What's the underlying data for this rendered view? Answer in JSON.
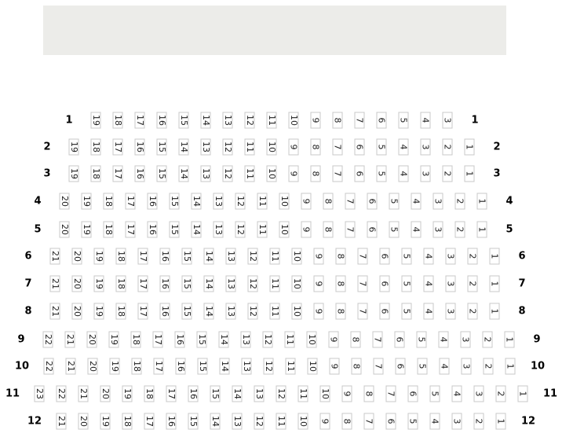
{
  "stage": {
    "label": ""
  },
  "rows": [
    {
      "label": "1",
      "seats": [
        "19",
        "18",
        "17",
        "16",
        "15",
        "14",
        "13",
        "12",
        "11",
        "10",
        "9",
        "8",
        "7",
        "6",
        "5",
        "4",
        "3"
      ]
    },
    {
      "label": "2",
      "seats": [
        "19",
        "18",
        "17",
        "16",
        "15",
        "14",
        "13",
        "12",
        "11",
        "10",
        "9",
        "8",
        "7",
        "6",
        "5",
        "4",
        "3",
        "2",
        "1"
      ]
    },
    {
      "label": "3",
      "seats": [
        "19",
        "18",
        "17",
        "16",
        "15",
        "14",
        "13",
        "12",
        "11",
        "10",
        "9",
        "8",
        "7",
        "6",
        "5",
        "4",
        "3",
        "2",
        "1"
      ]
    },
    {
      "label": "4",
      "seats": [
        "20",
        "19",
        "18",
        "17",
        "16",
        "15",
        "14",
        "13",
        "12",
        "11",
        "10",
        "9",
        "8",
        "7",
        "6",
        "5",
        "4",
        "3",
        "2",
        "1"
      ]
    },
    {
      "label": "5",
      "seats": [
        "20",
        "19",
        "18",
        "17",
        "16",
        "15",
        "14",
        "13",
        "12",
        "11",
        "10",
        "9",
        "8",
        "7",
        "6",
        "5",
        "4",
        "3",
        "2",
        "1"
      ]
    },
    {
      "label": "6",
      "seats": [
        "21",
        "20",
        "19",
        "18",
        "17",
        "16",
        "15",
        "14",
        "13",
        "12",
        "11",
        "10",
        "9",
        "8",
        "7",
        "6",
        "5",
        "4",
        "3",
        "2",
        "1"
      ]
    },
    {
      "label": "7",
      "seats": [
        "21",
        "20",
        "19",
        "18",
        "17",
        "16",
        "15",
        "14",
        "13",
        "12",
        "11",
        "10",
        "9",
        "8",
        "7",
        "6",
        "5",
        "4",
        "3",
        "2",
        "1"
      ]
    },
    {
      "label": "8",
      "seats": [
        "21",
        "20",
        "19",
        "18",
        "17",
        "16",
        "15",
        "14",
        "13",
        "12",
        "11",
        "10",
        "9",
        "8",
        "7",
        "6",
        "5",
        "4",
        "3",
        "2",
        "1"
      ]
    },
    {
      "label": "9",
      "seats": [
        "22",
        "21",
        "20",
        "19",
        "18",
        "17",
        "16",
        "15",
        "14",
        "13",
        "12",
        "11",
        "10",
        "9",
        "8",
        "7",
        "6",
        "5",
        "4",
        "3",
        "2",
        "1"
      ]
    },
    {
      "label": "10",
      "seats": [
        "22",
        "21",
        "20",
        "19",
        "18",
        "17",
        "16",
        "15",
        "14",
        "13",
        "12",
        "11",
        "10",
        "9",
        "8",
        "7",
        "6",
        "5",
        "4",
        "3",
        "2",
        "1"
      ]
    },
    {
      "label": "11",
      "seats": [
        "23",
        "22",
        "21",
        "20",
        "19",
        "18",
        "17",
        "16",
        "15",
        "14",
        "13",
        "12",
        "11",
        "10",
        "9",
        "8",
        "7",
        "6",
        "5",
        "4",
        "3",
        "2",
        "1"
      ]
    },
    {
      "label": "12",
      "seats": [
        "21",
        "20",
        "19",
        "18",
        "17",
        "16",
        "15",
        "14",
        "13",
        "12",
        "11",
        "10",
        "9",
        "8",
        "7",
        "6",
        "5",
        "4",
        "3",
        "2",
        "1"
      ]
    }
  ]
}
